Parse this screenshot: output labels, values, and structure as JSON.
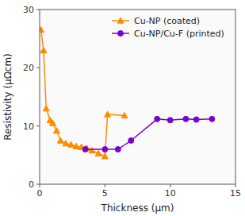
{
  "chart_data": {
    "type": "line",
    "xlabel": "Thickness (μm)",
    "ylabel": "Resistivity (μΩcm)",
    "xlim": [
      0,
      15
    ],
    "ylim": [
      0,
      30
    ],
    "xticks": [
      0,
      5,
      10,
      15
    ],
    "yticks": [
      0,
      10,
      20,
      30
    ],
    "grid": false,
    "legend": "upper right",
    "series": [
      {
        "name": "Cu-NP (coated)",
        "color": "#FF8C00",
        "marker": "triangle",
        "x": [
          0.1,
          0.3,
          0.5,
          0.8,
          1.0,
          1.3,
          1.6,
          2.0,
          2.4,
          2.8,
          3.2,
          3.6,
          4.0,
          4.5,
          5.0,
          5.2,
          6.5
        ],
        "values": [
          26.5,
          23.0,
          13.0,
          11.0,
          10.5,
          9.2,
          7.5,
          7.0,
          6.8,
          6.5,
          6.4,
          6.2,
          5.8,
          5.3,
          4.8,
          12.0,
          11.8
        ]
      },
      {
        "name": "Cu-NP/Cu-F (printed)",
        "color": "#7B00D4",
        "marker": "circle",
        "x": [
          3.5,
          5.0,
          6.0,
          7.0,
          9.0,
          10.0,
          11.2,
          12.0,
          13.2
        ],
        "values": [
          6.0,
          6.0,
          6.0,
          7.5,
          11.2,
          11.0,
          11.2,
          11.1,
          11.2
        ]
      }
    ]
  }
}
